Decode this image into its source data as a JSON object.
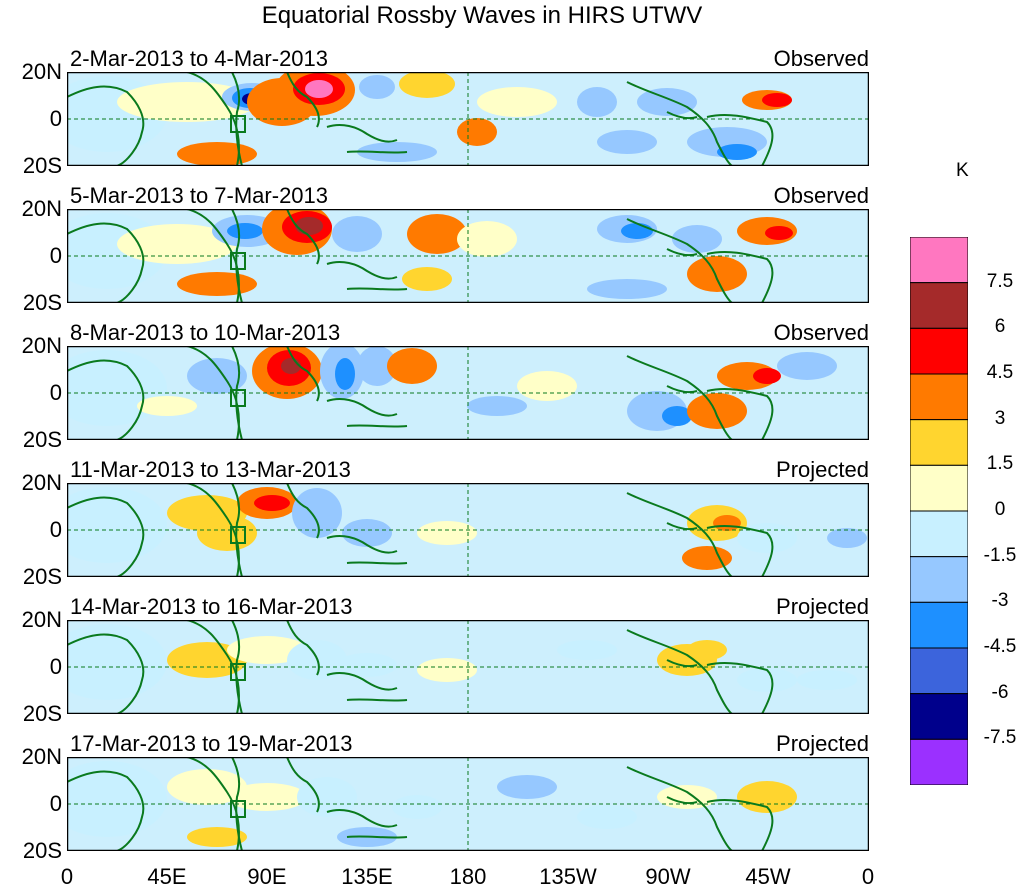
{
  "title": "Equatorial Rossby Waves in HIRS UTWV",
  "panels": [
    {
      "date": "2-Mar-2013 to 4-Mar-2013",
      "label": "Observed"
    },
    {
      "date": "5-Mar-2013 to 7-Mar-2013",
      "label": "Observed"
    },
    {
      "date": "8-Mar-2013 to 10-Mar-2013",
      "label": "Observed"
    },
    {
      "date": "11-Mar-2013 to 13-Mar-2013",
      "label": "Projected"
    },
    {
      "date": "14-Mar-2013 to 16-Mar-2013",
      "label": "Projected"
    },
    {
      "date": "17-Mar-2013 to 19-Mar-2013",
      "label": "Projected"
    }
  ],
  "y_labels": [
    "20N",
    "0",
    "20S"
  ],
  "x_labels": [
    "0",
    "45E",
    "90E",
    "135E",
    "180",
    "135W",
    "90W",
    "45W",
    "0"
  ],
  "colorbar": {
    "unit": "K",
    "levels": [
      "7.5",
      "6",
      "4.5",
      "3",
      "1.5",
      "0",
      "-1.5",
      "-3",
      "-4.5",
      "-6",
      "-7.5"
    ],
    "colors": [
      "#ff77c0",
      "#a52a2a",
      "#ff0000",
      "#ff7a00",
      "#ffd52f",
      "#ffffc8",
      "#c8f0ff",
      "#96c8ff",
      "#1e90ff",
      "#3c64dc",
      "#00008c",
      "#9b30ff"
    ]
  },
  "colors": {
    "land": "#0a7a1e",
    "ocean_bg": "#cdeffd"
  }
}
